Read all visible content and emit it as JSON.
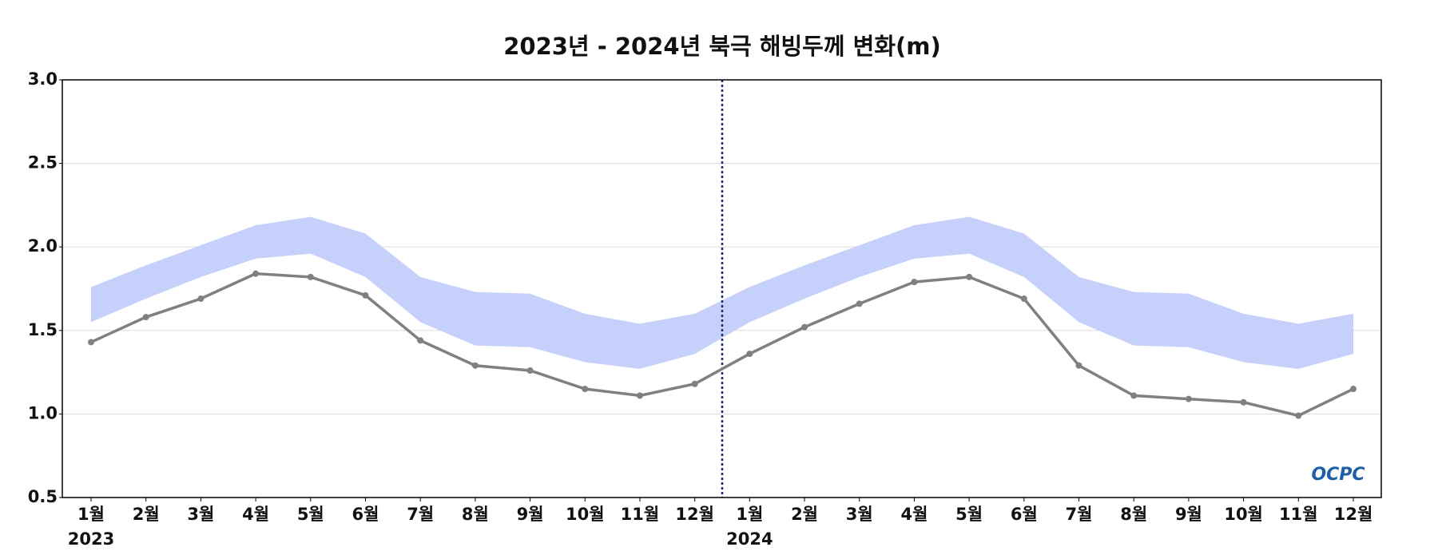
{
  "chart_data": {
    "type": "line-band",
    "title": "2023년 - 2024년 북극 해빙두께 변화(m)",
    "logo": "OCPC",
    "categories": [
      "1월",
      "2월",
      "3월",
      "4월",
      "5월",
      "6월",
      "7월",
      "8월",
      "9월",
      "10월",
      "11월",
      "12월",
      "1월",
      "2월",
      "3월",
      "4월",
      "5월",
      "6월",
      "7월",
      "8월",
      "9월",
      "10월",
      "11월",
      "12월"
    ],
    "year_labels": [
      "2023",
      null,
      null,
      null,
      null,
      null,
      null,
      null,
      null,
      null,
      null,
      null,
      "2024",
      null,
      null,
      null,
      null,
      null,
      null,
      null,
      null,
      null,
      null,
      null
    ],
    "series": [
      {
        "color": "#808080",
        "values": [
          1.43,
          1.58,
          1.69,
          1.84,
          1.82,
          1.71,
          1.44,
          1.29,
          1.26,
          1.15,
          1.11,
          1.18,
          1.36,
          1.52,
          1.66,
          1.79,
          1.82,
          1.69,
          1.29,
          1.11,
          1.09,
          1.07,
          0.99,
          1.15
        ]
      }
    ],
    "band": {
      "color": "#c5d0fb",
      "upper": [
        1.76,
        1.89,
        2.01,
        2.13,
        2.18,
        2.08,
        1.82,
        1.73,
        1.72,
        1.6,
        1.54,
        1.6,
        1.76,
        1.89,
        2.01,
        2.13,
        2.18,
        2.08,
        1.82,
        1.73,
        1.72,
        1.6,
        1.54,
        1.6
      ],
      "lower": [
        1.55,
        1.69,
        1.82,
        1.93,
        1.96,
        1.82,
        1.55,
        1.41,
        1.4,
        1.31,
        1.27,
        1.36,
        1.55,
        1.69,
        1.82,
        1.93,
        1.96,
        1.82,
        1.55,
        1.41,
        1.4,
        1.31,
        1.27,
        1.36
      ]
    },
    "divider_color": "#1f2a6b",
    "ylim": [
      0.5,
      3.0
    ],
    "yticks": [
      0.5,
      {
        "value": 1.0,
        "label": "1.0"
      },
      1.5,
      {
        "value": 2.0,
        "label": "2.0"
      },
      2.5,
      {
        "value": 3.0,
        "label": "3.0"
      }
    ],
    "grid": true
  }
}
